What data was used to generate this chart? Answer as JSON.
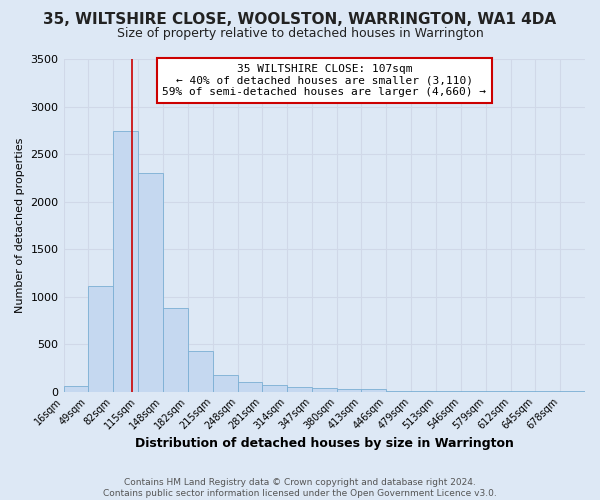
{
  "title": "35, WILTSHIRE CLOSE, WOOLSTON, WARRINGTON, WA1 4DA",
  "subtitle": "Size of property relative to detached houses in Warrington",
  "xlabel": "Distribution of detached houses by size in Warrington",
  "ylabel": "Number of detached properties",
  "footnote1": "Contains HM Land Registry data © Crown copyright and database right 2024.",
  "footnote2": "Contains public sector information licensed under the Open Government Licence v3.0.",
  "bar_labels": [
    "16sqm",
    "49sqm",
    "82sqm",
    "115sqm",
    "148sqm",
    "182sqm",
    "215sqm",
    "248sqm",
    "281sqm",
    "314sqm",
    "347sqm",
    "380sqm",
    "413sqm",
    "446sqm",
    "479sqm",
    "513sqm",
    "546sqm",
    "579sqm",
    "612sqm",
    "645sqm",
    "678sqm"
  ],
  "bar_values": [
    55,
    1110,
    2740,
    2300,
    880,
    430,
    175,
    100,
    65,
    50,
    40,
    28,
    28,
    3,
    3,
    3,
    2,
    2,
    2,
    2,
    2
  ],
  "bar_color": "#c5d8f0",
  "bar_edge_color": "#7bafd4",
  "grid_color": "#d0d8e8",
  "bg_color": "#dde8f5",
  "annotation_text": "35 WILTSHIRE CLOSE: 107sqm\n← 40% of detached houses are smaller (3,110)\n59% of semi-detached houses are larger (4,660) →",
  "annotation_box_color": "#ffffff",
  "annotation_border_color": "#cc0000",
  "vline_x": 107,
  "vline_color": "#cc0000",
  "ylim": [
    0,
    3500
  ],
  "yticks": [
    0,
    500,
    1000,
    1500,
    2000,
    2500,
    3000,
    3500
  ],
  "bin_edges": [
    16,
    49,
    82,
    115,
    148,
    182,
    215,
    248,
    281,
    314,
    347,
    380,
    413,
    446,
    479,
    513,
    546,
    579,
    612,
    645,
    678
  ],
  "xlim_max": 711
}
